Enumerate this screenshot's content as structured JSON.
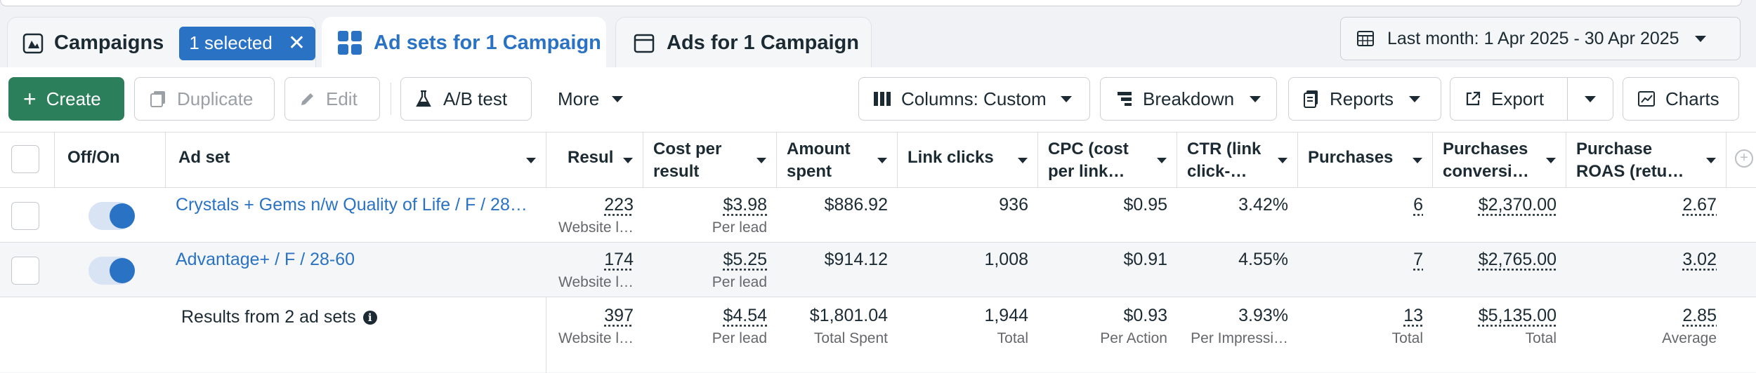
{
  "tabs": {
    "campaigns": {
      "label": "Campaigns",
      "selected_badge": "1 selected"
    },
    "adsets": {
      "label": "Ad sets for 1 Campaign"
    },
    "ads": {
      "label": "Ads for 1 Campaign"
    }
  },
  "date_range": {
    "label": "Last month: 1 Apr 2025 - 30 Apr 2025"
  },
  "toolbar": {
    "create": "Create",
    "duplicate": "Duplicate",
    "edit": "Edit",
    "ab_test": "A/B test",
    "more": "More",
    "columns": "Columns: Custom",
    "breakdown": "Breakdown",
    "reports": "Reports",
    "export": "Export",
    "charts": "Charts"
  },
  "table": {
    "headers": {
      "off_on": "Off/On",
      "ad_set": "Ad set",
      "results": "Resul",
      "cost_per_result": [
        "Cost per",
        "result"
      ],
      "amount_spent": [
        "Amount",
        "spent"
      ],
      "link_clicks": "Link clicks",
      "cpc": [
        "CPC (cost",
        "per link…"
      ],
      "ctr": [
        "CTR (link",
        "click-…"
      ],
      "purchases": "Purchases",
      "purchases_conv": [
        "Purchases",
        "conversi…"
      ],
      "purchase_roas": [
        "Purchase",
        "ROAS (retu…"
      ]
    },
    "rows": [
      {
        "name": "Crystals + Gems n/w Quality of Life / F / 28…",
        "enabled": true,
        "results": "223",
        "results_sub": "Website l…",
        "cost_per_result": "$3.98",
        "cost_sub": "Per lead",
        "amount_spent": "$886.92",
        "link_clicks": "936",
        "cpc": "$0.95",
        "ctr": "3.42%",
        "purchases": "6",
        "purchases_conv": "$2,370.00",
        "purchase_roas": "2.67"
      },
      {
        "name": "Advantage+ / F / 28-60",
        "enabled": true,
        "results": "174",
        "results_sub": "Website l…",
        "cost_per_result": "$5.25",
        "cost_sub": "Per lead",
        "amount_spent": "$914.12",
        "link_clicks": "1,008",
        "cpc": "$0.91",
        "ctr": "4.55%",
        "purchases": "7",
        "purchases_conv": "$2,765.00",
        "purchase_roas": "3.02"
      }
    ],
    "summary": {
      "label": "Results from 2 ad sets",
      "results": "397",
      "results_sub": "Website l…",
      "cost_per_result": "$4.54",
      "cost_sub": "Per lead",
      "amount_spent": "$1,801.04",
      "amount_sub": "Total Spent",
      "link_clicks": "1,944",
      "link_sub": "Total",
      "cpc": "$0.93",
      "cpc_sub": "Per Action",
      "ctr": "3.93%",
      "ctr_sub": "Per Impressi…",
      "purchases": "13",
      "purchases_sub": "Total",
      "purchases_conv": "$5,135.00",
      "conv_sub": "Total",
      "purchase_roas": "2.85",
      "roas_sub": "Average"
    }
  },
  "colors": {
    "accent_blue": "#2a72c4",
    "create_green": "#2b7f5a",
    "page_bg": "#f0f2f5"
  }
}
